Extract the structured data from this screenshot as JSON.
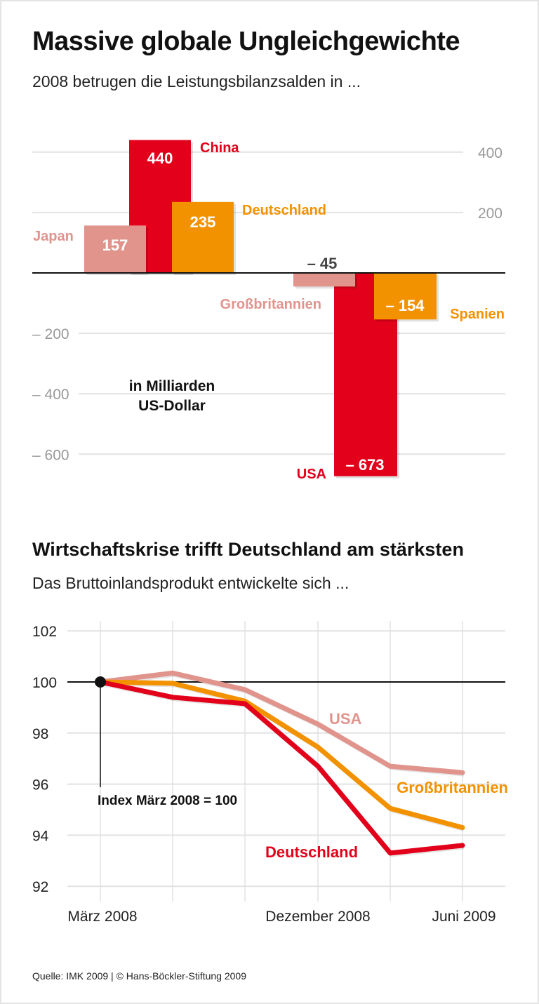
{
  "colors": {
    "red": "#e2001a",
    "orange": "#f39200",
    "pink": "#e0948c",
    "grid": "#e2e2e2",
    "axis": "#111111",
    "tick": "#999999"
  },
  "chart_data": [
    {
      "type": "bar",
      "title": "Massive globale Ungleichgewichte",
      "subtitle": "2008 betrugen die Leistungsbilanzsalden in ...",
      "unit_label": [
        "in Milliarden",
        "US-Dollar"
      ],
      "ylim": [
        -700,
        450
      ],
      "yticks": [
        400,
        200,
        -200,
        -400,
        -600
      ],
      "ytick_labels": [
        "400",
        "200",
        "– 200",
        "– 400",
        "– 600"
      ],
      "grid": true,
      "categories": [
        "Japan",
        "China",
        "Deutschland",
        "Großbritannien",
        "USA",
        "Spanien"
      ],
      "values": [
        157,
        440,
        235,
        -45,
        -673,
        -154
      ],
      "value_labels": [
        "157",
        "440",
        "235",
        "– 45",
        "– 673",
        "– 154"
      ],
      "bar_colors": [
        "pink",
        "red",
        "orange",
        "pink",
        "red",
        "orange"
      ]
    },
    {
      "type": "line",
      "title": "Wirtschaftskrise trifft Deutschland am stärksten",
      "subtitle": "Das Bruttoinlandsprodukt entwickelte sich ...",
      "annotation": "Index März 2008 = 100",
      "ylim": [
        92,
        102
      ],
      "yticks": [
        102,
        100,
        98,
        96,
        94,
        92
      ],
      "x_tick_labels": [
        "März 2008",
        "",
        "",
        "Dezember 2008",
        "",
        "Juni 2009"
      ],
      "grid": true,
      "series": [
        {
          "name": "USA",
          "color": "pink",
          "values": [
            100,
            100.35,
            99.7,
            98.35,
            96.7,
            96.45
          ]
        },
        {
          "name": "Großbritannien",
          "color": "orange",
          "values": [
            100,
            99.95,
            99.25,
            97.45,
            95.05,
            94.3
          ]
        },
        {
          "name": "Deutschland",
          "color": "red",
          "values": [
            100,
            99.4,
            99.15,
            96.7,
            93.3,
            93.6
          ]
        }
      ]
    }
  ],
  "source": "Quelle: IMK 2009 | © Hans-Böckler-Stiftung 2009"
}
